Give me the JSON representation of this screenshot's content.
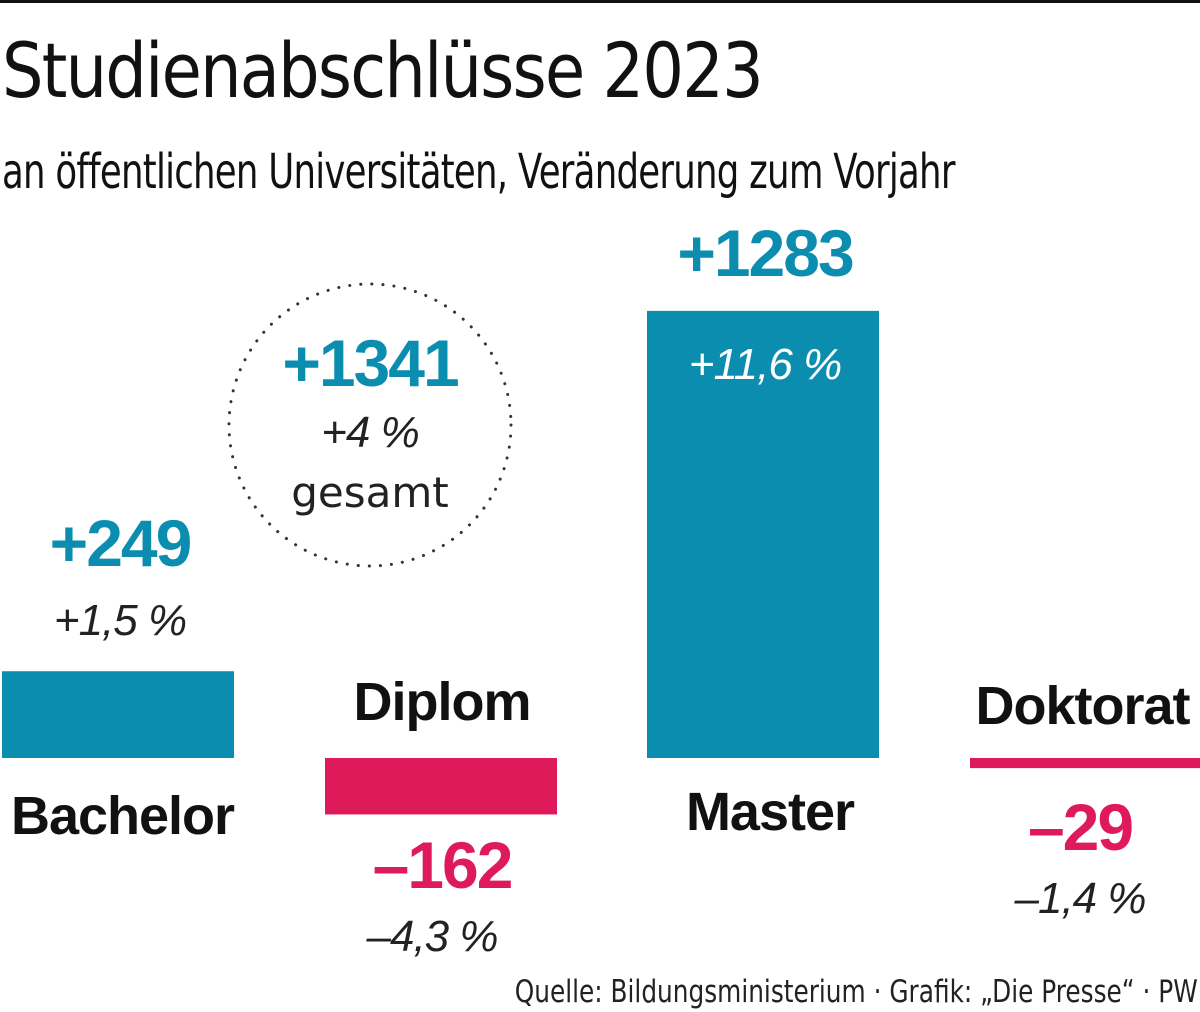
{
  "colors": {
    "positive": "#0b8db0",
    "negative": "#de1a5b",
    "text": "#111111"
  },
  "chart_data": {
    "type": "bar",
    "title": "Studienabschlüsse 2023",
    "subtitle": "an öffentlichen Universitäten, Veränderung zum Vorjahr",
    "categories": [
      "Bachelor",
      "Diplom",
      "Master",
      "Doktorat"
    ],
    "values": [
      249,
      -162,
      1283,
      -29
    ],
    "value_labels": [
      "+249",
      "–162",
      "+1283",
      "–29"
    ],
    "percent_labels": [
      "+1,5 %",
      "–4,3 %",
      "+11,6 %",
      "–1,4 %"
    ],
    "total": {
      "value": 1341,
      "value_label": "+1341",
      "percent_label": "+4 %",
      "label": "gesamt"
    },
    "ylim": [
      -162,
      1283
    ],
    "grid": false,
    "source": "Quelle: Bildungsministerium · Grafik: „Die Presse“ · PW"
  }
}
